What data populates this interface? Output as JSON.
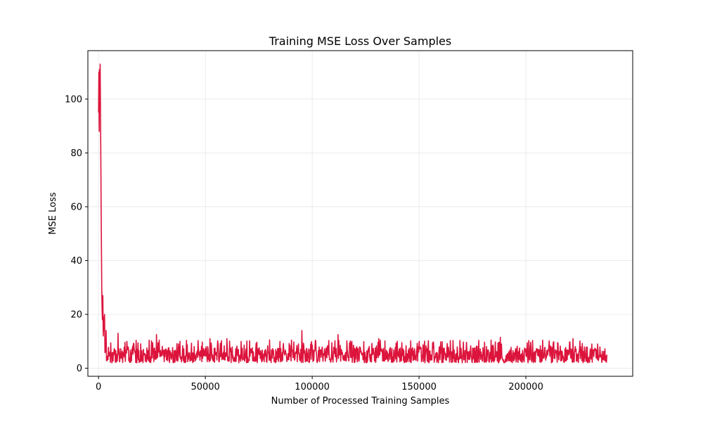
{
  "chart_data": {
    "type": "line",
    "title": "Training MSE Loss Over Samples",
    "xlabel": "Number of Processed Training Samples",
    "ylabel": "MSE Loss",
    "xlim": [
      -5000,
      250000
    ],
    "ylim": [
      -3,
      118
    ],
    "xticks": [
      0,
      50000,
      100000,
      150000,
      200000
    ],
    "yticks": [
      0,
      20,
      40,
      60,
      80,
      100
    ],
    "grid": true,
    "colors": {
      "line": "#dc143c",
      "grid": "#e6e6e6",
      "axis": "#000000"
    },
    "series": [
      {
        "x": [
          0,
          150,
          300,
          450,
          600,
          750,
          900,
          1050,
          1200,
          1350,
          1500,
          1650,
          1800,
          2000,
          2200,
          2400,
          2600,
          2800,
          3000,
          3300,
          3600,
          4000,
          4500,
          5000,
          5500,
          6000,
          6500,
          7000,
          7500,
          8000,
          9000,
          10000,
          12000,
          14000,
          16000,
          18000,
          20000,
          22000,
          25000,
          28000,
          30000,
          35000,
          40000,
          45000,
          50000,
          55000,
          60000,
          70000,
          80000,
          90000,
          95000,
          100000,
          110000,
          112000,
          120000,
          130000,
          140000,
          150000,
          160000,
          170000,
          180000,
          190000,
          200000,
          210000,
          220000,
          225000,
          230000,
          235000,
          238000
        ],
        "y": [
          95,
          110,
          88,
          111,
          105,
          113,
          96,
          80,
          60,
          45,
          30,
          22,
          18,
          27,
          12,
          19,
          14,
          20,
          6,
          11,
          8,
          14,
          7,
          12,
          5,
          10,
          6,
          13,
          5,
          9,
          6,
          8,
          7,
          5,
          6,
          5,
          6,
          5,
          5,
          5,
          5,
          5,
          5,
          5,
          5,
          5,
          5,
          5,
          5,
          5,
          5,
          5,
          5,
          5,
          5,
          5,
          5,
          5,
          5,
          5,
          5,
          5,
          5,
          5,
          5,
          5,
          5,
          5,
          5
        ],
        "noise": {
          "from_x": 3000,
          "to_x": 238000,
          "base": 5,
          "low": 2,
          "typical_high": 9,
          "spikes": [
            [
              3500,
              14
            ],
            [
              9000,
              13
            ],
            [
              27000,
              12.5
            ],
            [
              52000,
              11
            ],
            [
              60000,
              11
            ],
            [
              80000,
              10.5
            ],
            [
              95000,
              14
            ],
            [
              112000,
              12.5
            ],
            [
              131000,
              11
            ],
            [
              150000,
              10
            ],
            [
              188000,
              11.5
            ],
            [
              222000,
              11
            ]
          ]
        }
      }
    ]
  }
}
